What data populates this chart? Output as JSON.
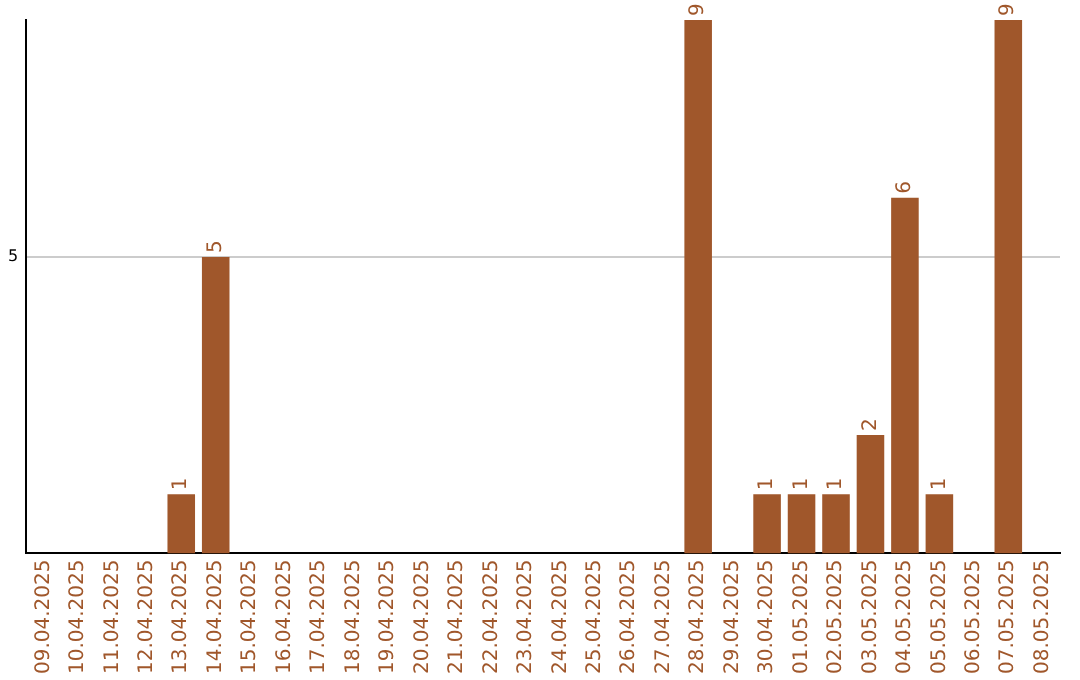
{
  "chart_data": {
    "type": "bar",
    "categories": [
      "09.04.2025",
      "10.04.2025",
      "11.04.2025",
      "12.04.2025",
      "13.04.2025",
      "14.04.2025",
      "15.04.2025",
      "16.04.2025",
      "17.04.2025",
      "18.04.2025",
      "19.04.2025",
      "20.04.2025",
      "21.04.2025",
      "22.04.2025",
      "23.04.2025",
      "24.04.2025",
      "25.04.2025",
      "26.04.2025",
      "27.04.2025",
      "28.04.2025",
      "29.04.2025",
      "30.04.2025",
      "01.05.2025",
      "02.05.2025",
      "03.05.2025",
      "04.05.2025",
      "05.05.2025",
      "06.05.2025",
      "07.05.2025",
      "08.05.2025"
    ],
    "values": [
      0,
      0,
      0,
      0,
      1,
      5,
      0,
      0,
      0,
      0,
      0,
      0,
      0,
      0,
      0,
      0,
      0,
      0,
      0,
      9,
      0,
      1,
      1,
      1,
      2,
      6,
      1,
      0,
      9,
      0
    ],
    "value_labels": [
      null,
      null,
      null,
      null,
      "1",
      "5",
      null,
      null,
      null,
      null,
      null,
      null,
      null,
      null,
      null,
      null,
      null,
      null,
      null,
      "9",
      null,
      "1",
      "1",
      "1",
      "2",
      "6",
      "1",
      null,
      "9",
      null
    ],
    "color": "#a0572b",
    "ylim": [
      0,
      9
    ],
    "yticks": [
      5
    ],
    "grid": "y"
  }
}
